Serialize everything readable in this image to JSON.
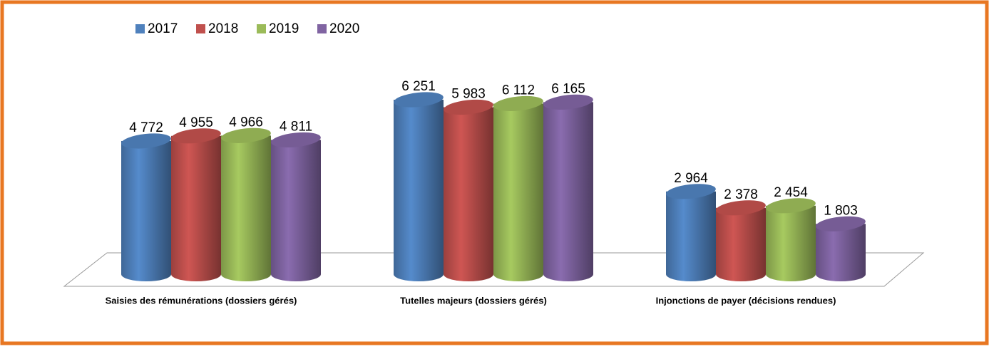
{
  "chart_data": {
    "type": "bar3d",
    "categories": [
      "Saisies des rémunérations (dossiers gérés)",
      "Tutelles majeurs (dossiers gérés)",
      "Injonctions de payer (décisions rendues)"
    ],
    "series": [
      {
        "name": "2017",
        "color": "#4f81bd",
        "values": [
          4772,
          6251,
          2964
        ],
        "value_labels": [
          "4 772",
          "6 251",
          "2 964"
        ]
      },
      {
        "name": "2018",
        "color": "#c0504d",
        "values": [
          4955,
          5983,
          2378
        ],
        "value_labels": [
          "4 955",
          "5 983",
          "2 378"
        ]
      },
      {
        "name": "2019",
        "color": "#9bbb59",
        "values": [
          4966,
          6112,
          2454
        ],
        "value_labels": [
          "4 966",
          "6 112",
          "2 454"
        ]
      },
      {
        "name": "2020",
        "color": "#8064a2",
        "values": [
          4811,
          6165,
          1803
        ],
        "value_labels": [
          "4 811",
          "6 165",
          "1 803"
        ]
      }
    ],
    "legend": "top-left"
  }
}
